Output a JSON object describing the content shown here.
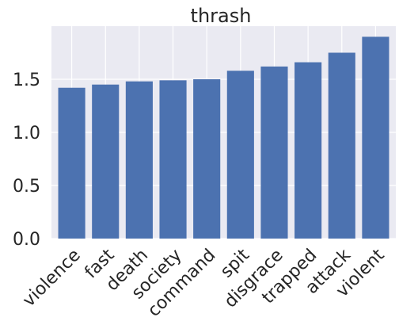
{
  "chart_data": {
    "type": "bar",
    "title": "thrash",
    "xlabel": "",
    "ylabel": "",
    "categories": [
      "violence",
      "fast",
      "death",
      "society",
      "command",
      "spit",
      "disgrace",
      "trapped",
      "attack",
      "violent"
    ],
    "values": [
      1.42,
      1.45,
      1.48,
      1.49,
      1.5,
      1.58,
      1.62,
      1.66,
      1.75,
      1.9
    ],
    "yticks": [
      "0.0",
      "0.5",
      "1.0",
      "1.5"
    ],
    "ylim": [
      0,
      2.0
    ],
    "grid": true,
    "colors": {
      "bar": "#4c72b0",
      "background": "#eaeaf2",
      "grid": "#ffffff"
    }
  }
}
